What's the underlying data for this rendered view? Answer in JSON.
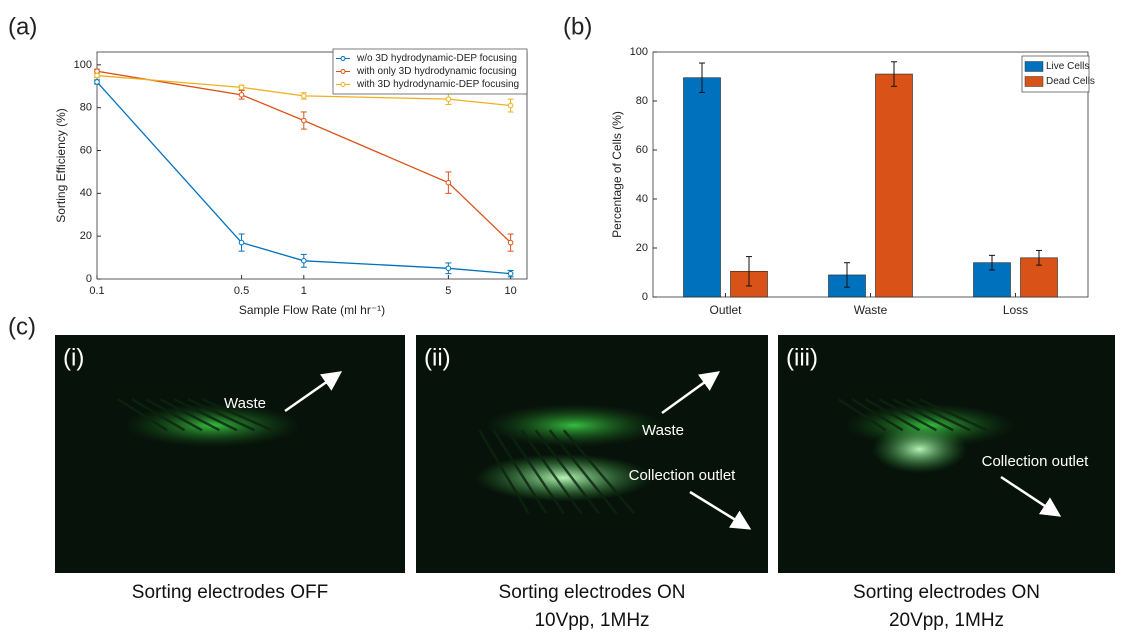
{
  "panels": [
    "(a)",
    "(b)",
    "(c)"
  ],
  "chart_data": [
    {
      "type": "line",
      "xscale": "log",
      "xlabel": "Sample Flow Rate (ml hr⁻¹)",
      "ylabel": "Sorting Efficiency (%)",
      "x": [
        0.1,
        0.5,
        1,
        5,
        10
      ],
      "xlim": [
        0.1,
        12
      ],
      "xticks": [
        0.1,
        0.5,
        1,
        5,
        10
      ],
      "ylim": [
        0,
        106
      ],
      "yticks": [
        0,
        20,
        40,
        60,
        80,
        100
      ],
      "legend": "top-right",
      "series": [
        {
          "name": "w/o 3D hydrodynamic-DEP focusing",
          "color": "#0072bd",
          "values": [
            92,
            17,
            8.5,
            5,
            2.5
          ],
          "errors": [
            1,
            4,
            3,
            2.5,
            1.5
          ]
        },
        {
          "name": "with only 3D hydrodynamic focusing",
          "color": "#d95319",
          "values": [
            97,
            86,
            74,
            45,
            17
          ],
          "errors": [
            1,
            2,
            4,
            5,
            4
          ]
        },
        {
          "name": "with 3D hydrodynamic-DEP focusing",
          "color": "#edb120",
          "values": [
            95,
            89.5,
            85.5,
            84,
            81
          ],
          "errors": [
            1,
            1,
            1.5,
            2.5,
            3
          ]
        }
      ]
    },
    {
      "type": "bar",
      "ylabel": "Percentage of Cells (%)",
      "categories": [
        "Outlet",
        "Waste",
        "Loss"
      ],
      "ylim": [
        0,
        100
      ],
      "yticks": [
        0,
        20,
        40,
        60,
        80,
        100
      ],
      "legend": "top-right",
      "series": [
        {
          "name": "Live Cells",
          "color": "#0072bd",
          "values": [
            89.5,
            9,
            14
          ],
          "errors": [
            6,
            5,
            3
          ]
        },
        {
          "name": "Dead Cells",
          "color": "#d95319",
          "values": [
            10.5,
            91,
            16
          ],
          "errors": [
            6,
            5,
            3
          ]
        }
      ]
    }
  ],
  "images": [
    {
      "label": "(i)",
      "annotations": [
        "Waste"
      ],
      "caption": [
        "Sorting electrodes OFF"
      ]
    },
    {
      "label": "(ii)",
      "annotations": [
        "Waste",
        "Collection outlet"
      ],
      "caption": [
        "Sorting electrodes ON",
        "10Vpp, 1MHz"
      ]
    },
    {
      "label": "(iii)",
      "annotations": [
        "Collection outlet"
      ],
      "caption": [
        "Sorting electrodes ON",
        "20Vpp, 1MHz"
      ]
    }
  ]
}
